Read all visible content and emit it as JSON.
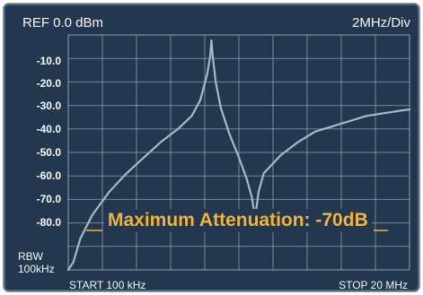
{
  "header": {
    "ref": "REF 0.0 dBm",
    "scale": "2MHz/Div"
  },
  "y_tick_labels": [
    "-10.0",
    "-20.0",
    "-30.0",
    "-40.0",
    "-50.0",
    "-60.0",
    "-70.0",
    "-80.0"
  ],
  "rbw": {
    "line1": "RBW",
    "line2": "100kHz"
  },
  "x_axis": {
    "start": "START 100 kHz",
    "stop": "STOP 20 MHz"
  },
  "annotation": "Maximum Attenuation: -70dB",
  "colors": {
    "screen": "#23384f",
    "grid": "#8fa0b5",
    "trace": "#a7b7cc",
    "annotation": "#f2b33a"
  },
  "chart_data": {
    "type": "line",
    "x_unit": "MHz",
    "y_unit": "dBm",
    "xlim": [
      0.1,
      20
    ],
    "ylim": [
      -90,
      0
    ],
    "grid": true,
    "series": [
      {
        "values": [
          [
            0.1,
            -90
          ],
          [
            0.4,
            -87
          ],
          [
            0.8,
            -78
          ],
          [
            1.5,
            -69
          ],
          [
            2.5,
            -60
          ],
          [
            3.5,
            -53
          ],
          [
            4.5,
            -47
          ],
          [
            5.5,
            -41
          ],
          [
            6.5,
            -36
          ],
          [
            7.3,
            -31
          ],
          [
            7.8,
            -25
          ],
          [
            8.2,
            -15
          ],
          [
            8.38,
            -8
          ],
          [
            8.45,
            -2
          ],
          [
            8.52,
            -8
          ],
          [
            8.7,
            -18
          ],
          [
            9.0,
            -28
          ],
          [
            9.5,
            -38
          ],
          [
            10.0,
            -46
          ],
          [
            10.5,
            -55
          ],
          [
            10.8,
            -62
          ],
          [
            11.0,
            -70
          ],
          [
            11.2,
            -60
          ],
          [
            11.5,
            -53
          ],
          [
            12.5,
            -46
          ],
          [
            13.5,
            -41
          ],
          [
            14.5,
            -37
          ],
          [
            15.5,
            -35
          ],
          [
            16.5,
            -33
          ],
          [
            17.5,
            -31
          ],
          [
            18.5,
            -30
          ],
          [
            19.5,
            -29
          ],
          [
            20,
            -28.5
          ]
        ]
      }
    ]
  }
}
